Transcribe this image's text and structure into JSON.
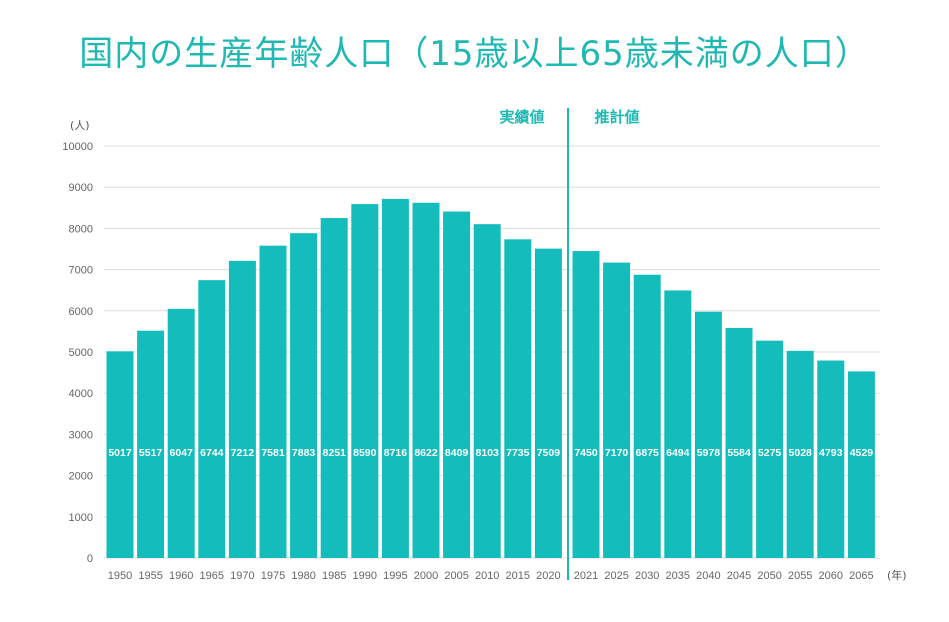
{
  "colors": {
    "bar": "#14bcbc",
    "accent": "#1fb8b3",
    "grid": "#dddddd",
    "divider": "#1fb8b3"
  },
  "chart_data": {
    "type": "bar",
    "title": "国内の生産年齢人口（15歳以上65歳未満の人口）",
    "ylabel": "(人)",
    "xlabel": "(年)",
    "ylim": [
      0,
      10000
    ],
    "yticks": [
      0,
      1000,
      2000,
      3000,
      4000,
      5000,
      6000,
      7000,
      8000,
      9000,
      10000
    ],
    "grid": true,
    "categories": [
      "1950",
      "1955",
      "1960",
      "1965",
      "1970",
      "1975",
      "1980",
      "1985",
      "1990",
      "1995",
      "2000",
      "2005",
      "2010",
      "2015",
      "2020",
      "2021",
      "2025",
      "2030",
      "2035",
      "2040",
      "2045",
      "2050",
      "2055",
      "2060",
      "2065"
    ],
    "values": [
      5017,
      5517,
      6047,
      6744,
      7212,
      7581,
      7883,
      8251,
      8590,
      8716,
      8622,
      8409,
      8103,
      7735,
      7509,
      7450,
      7170,
      6875,
      6494,
      5978,
      5584,
      5275,
      5028,
      4793,
      4529
    ],
    "regions": [
      {
        "label": "実績値",
        "from": "1950",
        "to": "2020"
      },
      {
        "label": "推計値",
        "from": "2021",
        "to": "2065"
      }
    ]
  }
}
